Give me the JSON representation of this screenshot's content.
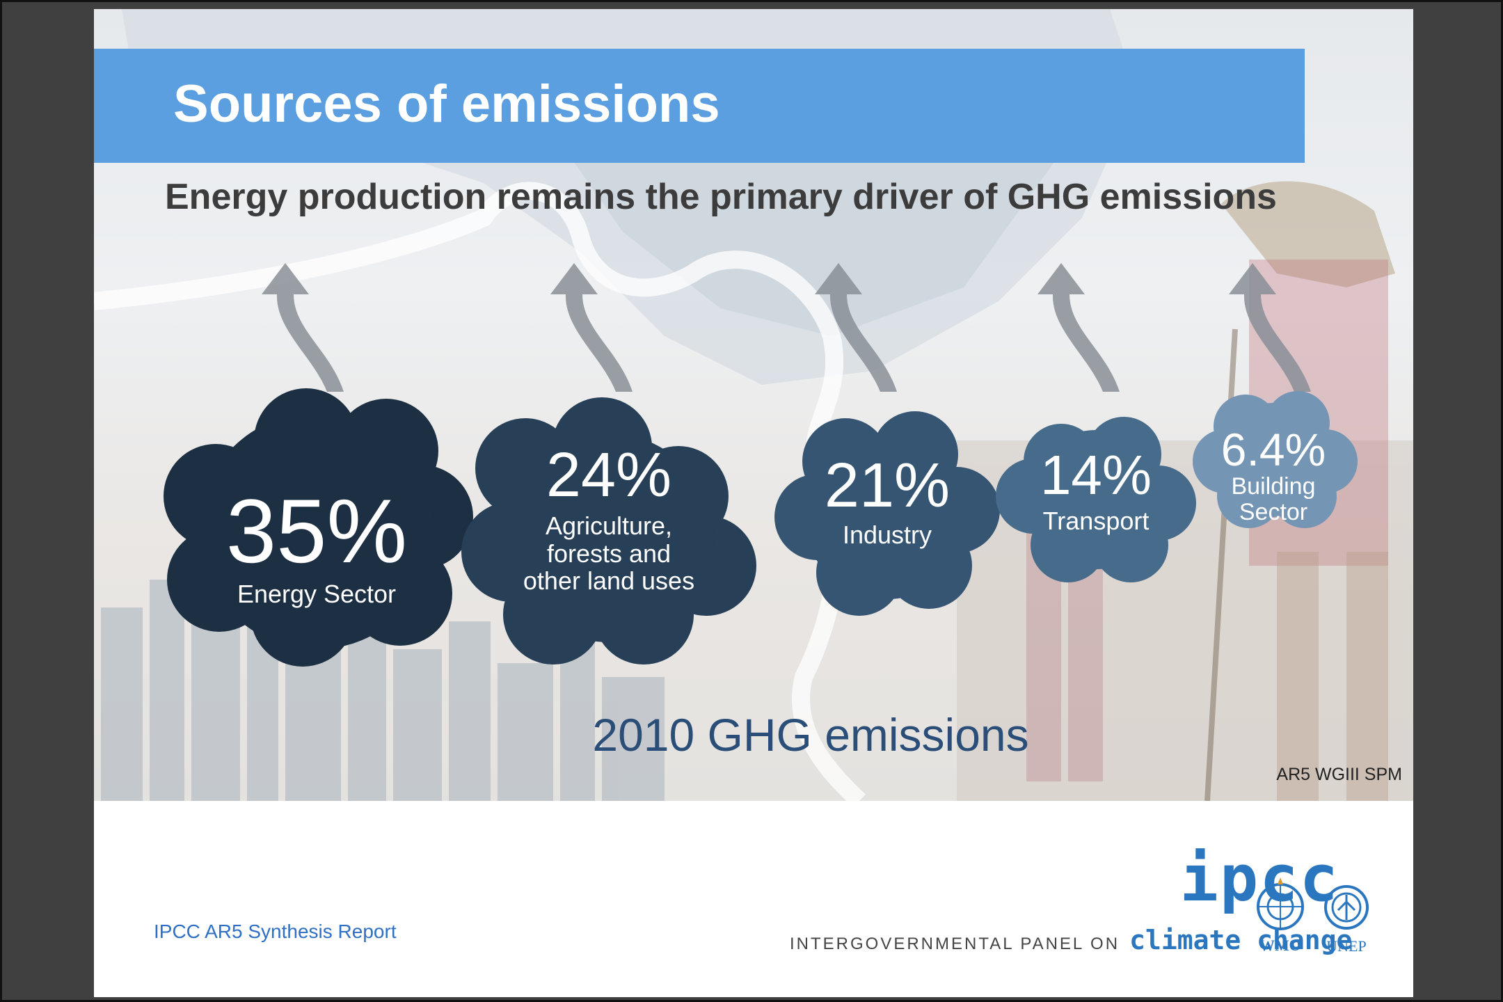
{
  "slide": {
    "title": "Sources of emissions",
    "subtitle": "Energy production remains the primary driver of GHG emissions",
    "year_label": "2010 GHG emissions",
    "citation": "AR5 WGIII SPM",
    "report_link": "IPCC AR5 Synthesis Report"
  },
  "sectors": [
    {
      "value": "35%",
      "label_lines": [
        "Energy Sector"
      ],
      "color": "#1d2f42"
    },
    {
      "value": "24%",
      "label_lines": [
        "Agriculture,",
        "forests and",
        "other land uses"
      ],
      "color": "#273f57"
    },
    {
      "value": "21%",
      "label_lines": [
        "Industry"
      ],
      "color": "#355572"
    },
    {
      "value": "14%",
      "label_lines": [
        "Transport"
      ],
      "color": "#476b8a"
    },
    {
      "value": "6.4%",
      "label_lines": [
        "Building",
        "Sector"
      ],
      "color": "#7495b3"
    }
  ],
  "logos": {
    "ipcc": "ipcc",
    "tagline_1": "INTERGOVERNMENTAL PANEL ON",
    "tagline_2": "climate change",
    "wmo": "WMO",
    "unep": "UNEP"
  },
  "colors": {
    "title_bar": "#5b9fe0",
    "year_label": "#2a4e78",
    "link": "#2f6fc4",
    "ipcc_blue": "#2a76bf"
  },
  "icons": [
    "up-arrow-icon",
    "wmo-emblem-icon",
    "unep-emblem-icon"
  ]
}
